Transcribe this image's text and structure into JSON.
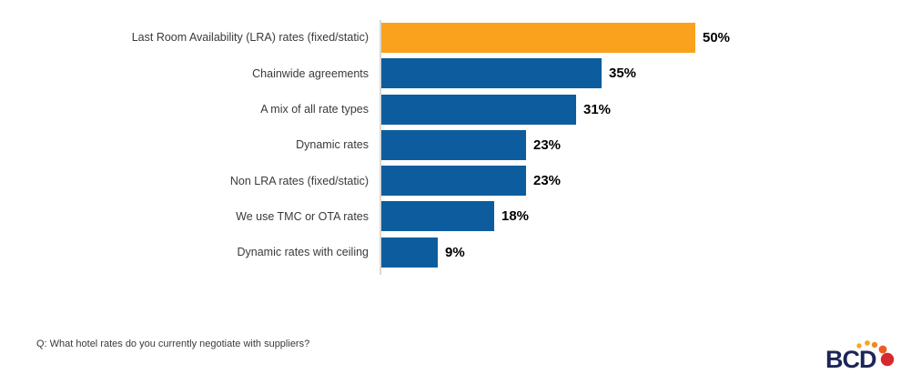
{
  "chart_data": {
    "type": "bar",
    "orientation": "horizontal",
    "title": "",
    "xlabel": "",
    "ylabel": "",
    "grid": false,
    "legend": "none",
    "xlim": [
      0,
      52
    ],
    "categories": [
      "Last Room Availability (LRA) rates (fixed/static)",
      "Chainwide agreements",
      "A mix of all rate types",
      "Dynamic rates",
      "Non LRA rates (fixed/static)",
      "We use TMC or OTA rates",
      "Dynamic rates with ceiling"
    ],
    "values": [
      50,
      35,
      31,
      23,
      23,
      18,
      9
    ],
    "value_labels": [
      "50%",
      "35%",
      "31%",
      "23%",
      "23%",
      "18%",
      "9%"
    ],
    "highlight_index": 0,
    "highlight_color": "#faa21d",
    "base_color": "#0d5d9e",
    "axis_color": "#d9d9d9"
  },
  "footer": {
    "question": "Q: What hotel rates do you currently negotiate with suppliers?"
  },
  "logo": {
    "text": "BCD",
    "text_color": "#1b2558",
    "dot_colors": [
      "#f9a51f",
      "#f9a51f",
      "#f6871f",
      "#f05b22",
      "#d7282f"
    ]
  }
}
